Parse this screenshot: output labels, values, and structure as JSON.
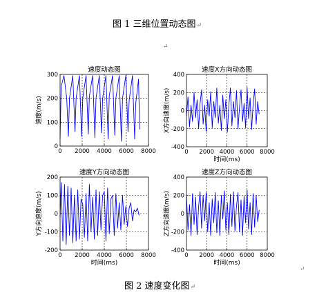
{
  "document": {
    "caption_top": "图 1  三维位置动态图",
    "caption_bottom": "图 2  速度变化图",
    "para_mark": "↵",
    "stray_marks": [
      "↵",
      "↵"
    ]
  },
  "chart_data": [
    {
      "type": "line",
      "title": "速度动态图",
      "xlabel": "",
      "ylabel": "速度(m/s)",
      "xlim": [
        0,
        8000
      ],
      "ylim": [
        0,
        300
      ],
      "xticks": [
        0,
        2000,
        4000,
        6000,
        8000
      ],
      "xtick_labels": [
        "0",
        "2000",
        "4000",
        "6000",
        "8000"
      ],
      "yticks": [
        0,
        100,
        200,
        300
      ],
      "ytick_labels": [
        "0",
        "100",
        "200",
        "300"
      ],
      "grid": "dashed",
      "color": "#0000ff",
      "series": [
        {
          "x": [
            0,
            100,
            350,
            600,
            750,
            850,
            1150,
            1350,
            1450,
            1750,
            1950,
            2050,
            2350,
            2550,
            2650,
            2950,
            3150,
            3250,
            3550,
            3750,
            3850,
            4150,
            4350,
            4450,
            4750,
            4950,
            5050,
            5350,
            5550,
            5650,
            5950,
            6150,
            6250,
            6550,
            6750,
            6850,
            7100,
            7200
          ],
          "values": [
            30,
            250,
            295,
            200,
            40,
            200,
            295,
            60,
            200,
            295,
            40,
            200,
            295,
            50,
            210,
            295,
            35,
            200,
            295,
            55,
            200,
            295,
            30,
            210,
            295,
            45,
            200,
            295,
            20,
            200,
            295,
            60,
            190,
            295,
            30,
            180,
            280,
            70
          ]
        }
      ]
    },
    {
      "type": "line",
      "title": "速度X方向动态图",
      "xlabel": "时间(ms)",
      "ylabel": "X方向速度(m/s)",
      "xlim": [
        0,
        8000
      ],
      "ylim": [
        -400,
        400
      ],
      "xticks": [
        0,
        2000,
        4000,
        6000,
        8000
      ],
      "xtick_labels": [
        "0",
        "2000",
        "4000",
        "6000",
        "8000"
      ],
      "yticks": [
        -400,
        -200,
        0,
        200,
        400
      ],
      "ytick_labels": [
        "-400",
        "-200",
        "0",
        "200",
        "400"
      ],
      "grid": "dashed",
      "color": "#0000ff",
      "series": [
        {
          "x": [
            0,
            150,
            300,
            450,
            600,
            750,
            900,
            1050,
            1200,
            1350,
            1500,
            1650,
            1800,
            1950,
            2100,
            2250,
            2400,
            2550,
            2700,
            2850,
            3000,
            3150,
            3300,
            3450,
            3600,
            3750,
            3900,
            4050,
            4200,
            4350,
            4500,
            4650,
            4800,
            4950,
            5100,
            5250,
            5400,
            5550,
            5700,
            5850,
            6000,
            6150,
            6300,
            6450,
            6600,
            6750,
            6900,
            7050,
            7200
          ],
          "values": [
            -60,
            150,
            -180,
            60,
            -120,
            200,
            -80,
            120,
            -200,
            80,
            230,
            -150,
            60,
            -230,
            120,
            -60,
            210,
            -190,
            100,
            -80,
            250,
            -140,
            60,
            -220,
            170,
            -90,
            120,
            -240,
            60,
            250,
            -170,
            100,
            -80,
            220,
            -200,
            40,
            230,
            -120,
            80,
            -190,
            260,
            -90,
            140,
            -210,
            70,
            240,
            -150,
            100,
            -40
          ]
        }
      ]
    },
    {
      "type": "line",
      "title": "速度Y方向动态图",
      "xlabel": "时间(ms)",
      "ylabel": "Y方向速度(m/s)",
      "xlim": [
        0,
        8000
      ],
      "ylim": [
        -200,
        200
      ],
      "xticks": [
        0,
        2000,
        4000,
        6000,
        8000
      ],
      "xtick_labels": [
        "0",
        "2000",
        "4000",
        "6000",
        "8000"
      ],
      "yticks": [
        -200,
        -100,
        0,
        100,
        200
      ],
      "ytick_labels": [
        "-200",
        "-100",
        "0",
        "100",
        "200"
      ],
      "grid": "dashed",
      "color": "#0000ff",
      "series": [
        {
          "x": [
            0,
            100,
            250,
            400,
            550,
            700,
            850,
            1000,
            1150,
            1300,
            1450,
            1600,
            1750,
            1900,
            2050,
            2200,
            2350,
            2500,
            2650,
            2800,
            2950,
            3100,
            3250,
            3400,
            3550,
            3700,
            3850,
            4000,
            4150,
            4300,
            4450,
            4600,
            4750,
            4900,
            5050,
            5200,
            5350,
            5500,
            5650,
            5800,
            5950,
            6100,
            6250,
            6400,
            6550,
            6700,
            6850,
            7000,
            7150
          ],
          "values": [
            -20,
            170,
            -150,
            160,
            -170,
            150,
            -120,
            140,
            -160,
            100,
            -150,
            130,
            -140,
            80,
            50,
            -130,
            110,
            -150,
            160,
            -100,
            90,
            -140,
            130,
            -120,
            120,
            -90,
            100,
            120,
            -150,
            140,
            -110,
            80,
            100,
            -120,
            110,
            -80,
            60,
            -90,
            100,
            -60,
            40,
            -70,
            30,
            60,
            -40,
            20,
            10,
            30,
            -10
          ]
        }
      ]
    },
    {
      "type": "line",
      "title": "速度Z方向动态图",
      "xlabel": "时间(ms)",
      "ylabel": "Z方向速度(m/s)",
      "xlim": [
        0,
        8000
      ],
      "ylim": [
        -400,
        400
      ],
      "xticks": [
        0,
        2000,
        4000,
        6000,
        8000
      ],
      "xtick_labels": [
        "0",
        "2000",
        "4000",
        "6000",
        "8000"
      ],
      "yticks": [
        -400,
        -200,
        0,
        200,
        400
      ],
      "ytick_labels": [
        "-400",
        "-200",
        "0",
        "200",
        "400"
      ],
      "grid": "dashed",
      "color": "#0000ff",
      "series": [
        {
          "x": [
            0,
            150,
            300,
            450,
            600,
            750,
            900,
            1050,
            1200,
            1350,
            1500,
            1650,
            1800,
            1950,
            2100,
            2250,
            2400,
            2550,
            2700,
            2850,
            3000,
            3150,
            3300,
            3450,
            3600,
            3750,
            3900,
            4050,
            4200,
            4350,
            4500,
            4650,
            4800,
            4950,
            5100,
            5250,
            5400,
            5550,
            5700,
            5850,
            6000,
            6150,
            6300,
            6450,
            6600,
            6750,
            6900,
            7050,
            7200
          ],
          "values": [
            200,
            -180,
            100,
            -240,
            220,
            -120,
            180,
            -230,
            80,
            240,
            -160,
            200,
            -80,
            230,
            -200,
            120,
            -240,
            160,
            -100,
            230,
            -210,
            140,
            -240,
            200,
            -60,
            250,
            -180,
            120,
            -230,
            210,
            -140,
            240,
            -190,
            80,
            230,
            -200,
            150,
            -240,
            190,
            -100,
            260,
            -170,
            120,
            -230,
            220,
            -150,
            200,
            -90,
            40
          ]
        }
      ]
    }
  ]
}
